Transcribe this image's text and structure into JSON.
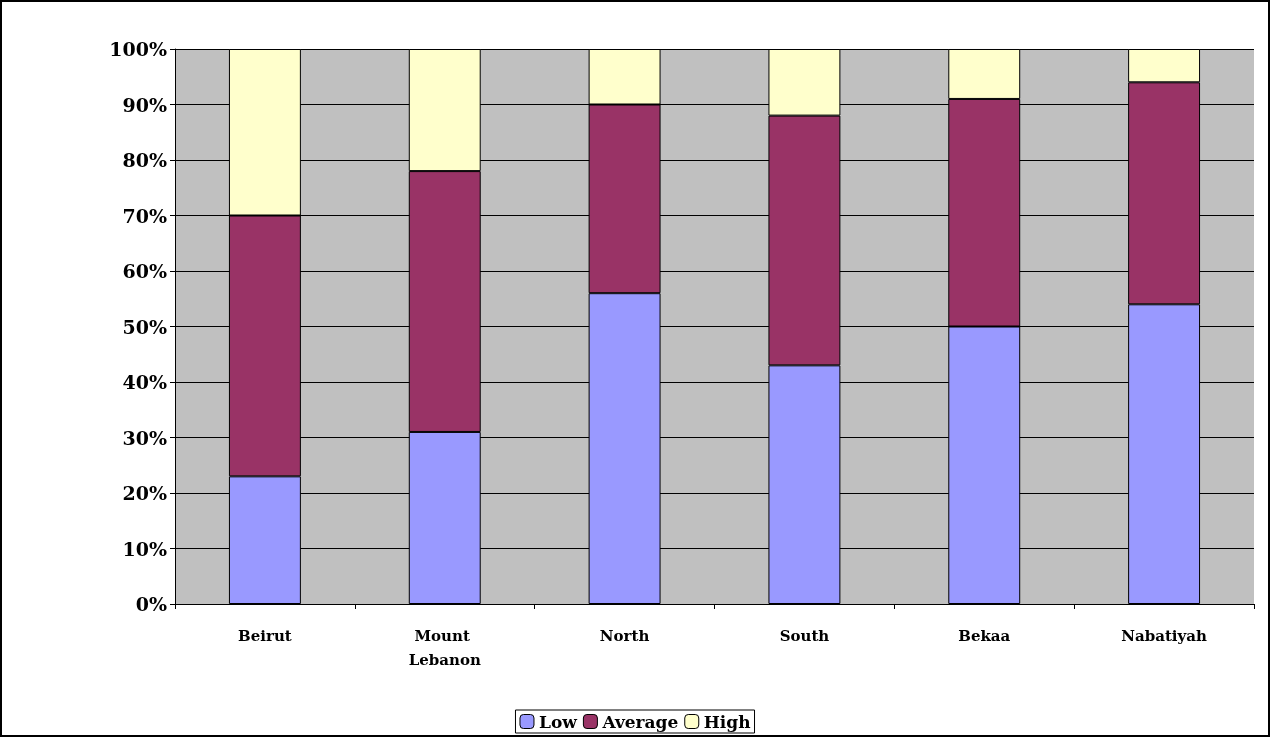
{
  "chart_data": {
    "type": "bar",
    "stacked": true,
    "categories": [
      "Beirut",
      "Mount Lebanon",
      "North",
      "South",
      "Bekaa",
      "Nabatiyah"
    ],
    "series": [
      {
        "name": "Low",
        "color": "#9999ff",
        "values": [
          23,
          31,
          56,
          43,
          50,
          54
        ]
      },
      {
        "name": "Average",
        "color": "#993366",
        "values": [
          47,
          47,
          34,
          45,
          41,
          40
        ]
      },
      {
        "name": "High",
        "color": "#ffffcc",
        "values": [
          30,
          22,
          10,
          12,
          9,
          6
        ]
      }
    ],
    "ylim": [
      0,
      100
    ],
    "yticks": [
      {
        "value": 0,
        "label": "0%"
      },
      {
        "value": 10,
        "label": "10%"
      },
      {
        "value": 20,
        "label": "20%"
      },
      {
        "value": 30,
        "label": "30%"
      },
      {
        "value": 40,
        "label": "40%"
      },
      {
        "value": 50,
        "label": "50%"
      },
      {
        "value": 60,
        "label": "60%"
      },
      {
        "value": 70,
        "label": "70%"
      },
      {
        "value": 80,
        "label": "80%"
      },
      {
        "value": 90,
        "label": "90%"
      },
      {
        "value": 100,
        "label": "100%"
      }
    ],
    "grid": "y",
    "legend": "bottom"
  }
}
